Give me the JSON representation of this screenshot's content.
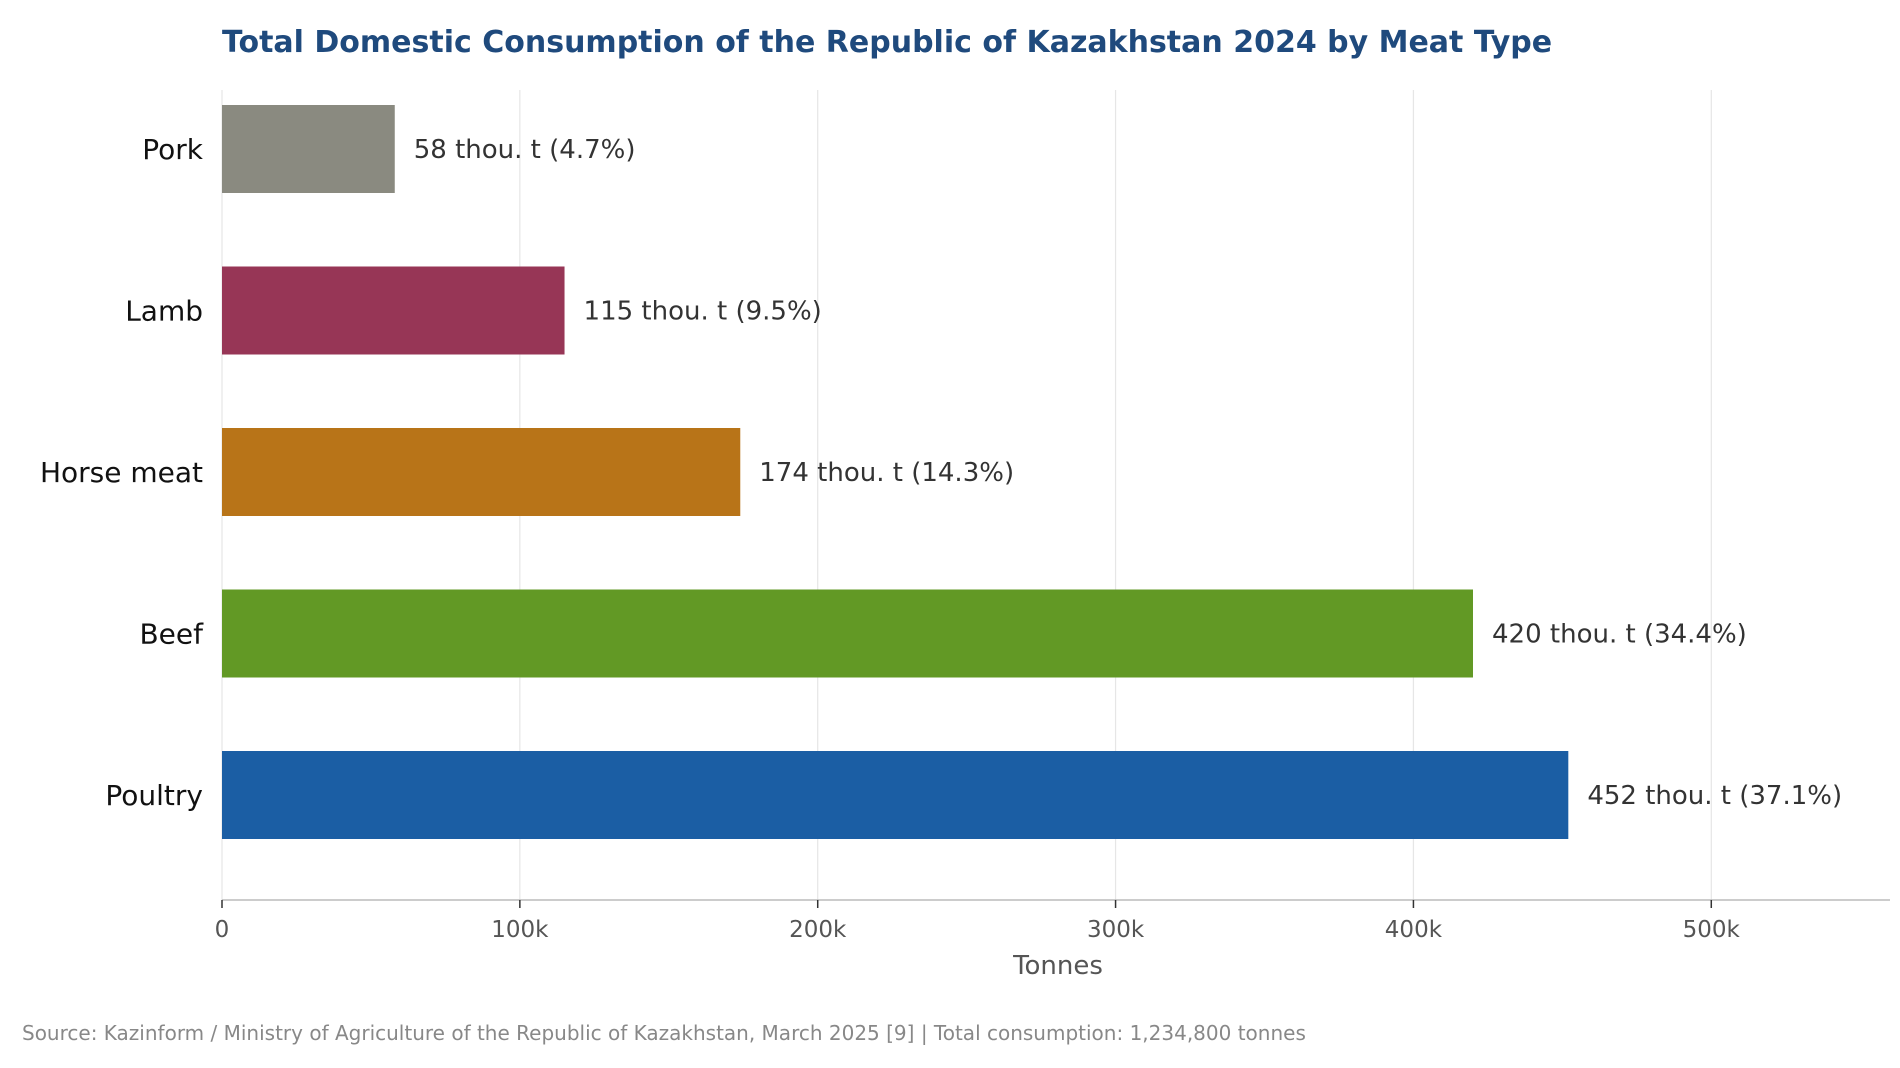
{
  "colors": {
    "title": "#1f4a7d",
    "grid": "#e6e6e6",
    "axis": "#bbbbbb"
  },
  "chart_data": {
    "type": "bar",
    "orientation": "horizontal",
    "title": "Total Domestic Consumption of the Republic of Kazakhstan 2024 by Meat Type",
    "xlabel": "Tonnes",
    "ylabel": "",
    "xlim": [
      0,
      560000
    ],
    "grid": true,
    "legend": "none",
    "x_ticks": [
      {
        "value": 0,
        "label": "0"
      },
      {
        "value": 100000,
        "label": "100k"
      },
      {
        "value": 200000,
        "label": "200k"
      },
      {
        "value": 300000,
        "label": "300k"
      },
      {
        "value": 400000,
        "label": "400k"
      },
      {
        "value": 500000,
        "label": "500k"
      }
    ],
    "bars": [
      {
        "category": "Pork",
        "value": 58000,
        "label": "58 thou. t  (4.7%)",
        "color": "#8a8a80"
      },
      {
        "category": "Lamb",
        "value": 115000,
        "label": "115 thou. t  (9.5%)",
        "color": "#973656"
      },
      {
        "category": "Horse meat",
        "value": 174000,
        "label": "174 thou. t  (14.3%)",
        "color": "#b87418"
      },
      {
        "category": "Beef",
        "value": 420000,
        "label": "420 thou. t  (34.4%)",
        "color": "#629925"
      },
      {
        "category": "Poultry",
        "value": 452000,
        "label": "452 thou. t  (37.1%)",
        "color": "#1b5ea4"
      }
    ],
    "source": "Source: Kazinform / Ministry of Agriculture of the Republic of Kazakhstan, March 2025 [9]  |  Total consumption: 1,234,800 tonnes"
  }
}
